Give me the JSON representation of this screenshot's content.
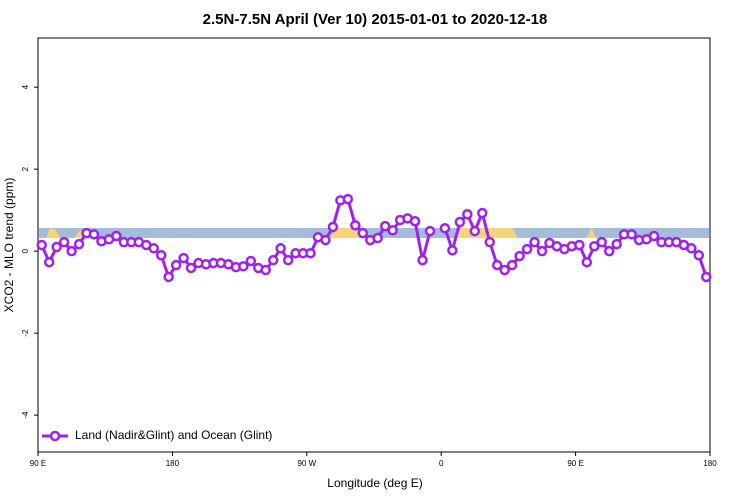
{
  "chart_data": {
    "type": "line",
    "title": "2.5N-7.5N April (Ver 10)   2015-01-01 to 2020-12-18",
    "x_label": "Longitude (deg E)",
    "y_label": "XCO2 - MLO trend (ppm)",
    "x": [
      92.5,
      97.5,
      102.5,
      107.5,
      112.5,
      117.5,
      122.5,
      127.5,
      132.5,
      137.5,
      142.5,
      147.5,
      152.5,
      157.5,
      162.5,
      167.5,
      172.5,
      177.5,
      182.5,
      187.5,
      192.5,
      197.5,
      202.5,
      207.5,
      212.5,
      217.5,
      222.5,
      227.5,
      232.5,
      237.5,
      242.5,
      247.5,
      252.5,
      257.5,
      262.5,
      267.5,
      272.5,
      277.5,
      282.5,
      287.5,
      292.5,
      297.5,
      302.5,
      307.5,
      312.5,
      317.5,
      322.5,
      327.5,
      332.5,
      337.5,
      342.5,
      347.5,
      352.5,
      357.5,
      362.5,
      367.5,
      372.5,
      377.5,
      382.5,
      387.5,
      392.5,
      397.5,
      402.5,
      407.5,
      412.5,
      417.5,
      422.5,
      427.5,
      432.5,
      437.5,
      442.5,
      447.5,
      452.5,
      457.5,
      462.5,
      467.5,
      472.5,
      477.5,
      482.5,
      487.5,
      492.5,
      497.5,
      502.5,
      507.5,
      512.5,
      517.5,
      522.5,
      527.5,
      532.5,
      537.5
    ],
    "series": [
      {
        "name": "Land (Nadir&Glint) and Ocean (Glint)",
        "color": "#a020f0",
        "values": [
          0.15,
          -0.27,
          0.1,
          0.22,
          0.0,
          0.17,
          0.44,
          0.41,
          0.24,
          0.29,
          0.37,
          0.22,
          0.22,
          0.22,
          0.15,
          0.07,
          -0.1,
          -0.63,
          -0.34,
          -0.17,
          -0.41,
          -0.29,
          -0.32,
          -0.29,
          -0.29,
          -0.32,
          -0.39,
          -0.37,
          -0.24,
          -0.41,
          -0.46,
          -0.22,
          0.07,
          -0.22,
          -0.05,
          -0.05,
          -0.05,
          0.34,
          0.27,
          0.59,
          1.24,
          1.27,
          0.63,
          0.44,
          0.27,
          0.32,
          0.61,
          0.51,
          0.76,
          0.8,
          0.73,
          -0.22,
          0.49,
          null,
          0.56,
          0.02,
          0.71,
          0.9,
          0.49,
          0.93,
          0.22,
          -0.34,
          -0.46,
          -0.34,
          -0.12,
          0.05,
          0.22,
          0.0,
          0.2,
          0.12,
          0.05,
          0.12,
          0.15,
          -0.27,
          0.12,
          0.22,
          0.0,
          0.17,
          0.41,
          0.41,
          0.27,
          0.29,
          0.37,
          0.22,
          0.22,
          0.22,
          0.15,
          0.07,
          -0.1,
          -0.63
        ]
      }
    ],
    "xlim": [
      90,
      540
    ],
    "xticks": [
      {
        "value": 90,
        "label": "90 E"
      },
      180,
      {
        "value": 270,
        "label": "90 W"
      },
      {
        "value": 360,
        "label": "0"
      },
      {
        "value": 450,
        "label": "90 E"
      },
      {
        "value": 540,
        "label": "180"
      }
    ],
    "ylim": [
      -4.9,
      5.2
    ],
    "yticks": [
      -4,
      -2,
      0,
      2,
      4
    ],
    "legend": "bottom-left"
  }
}
